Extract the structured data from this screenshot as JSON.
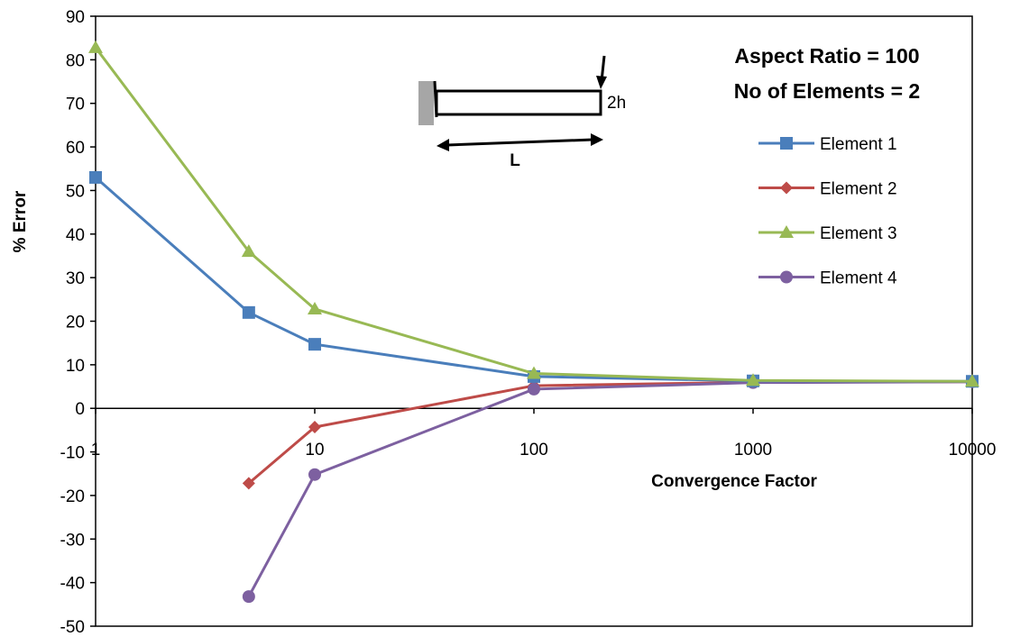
{
  "chart_data": {
    "type": "line",
    "xscale": "log",
    "xlim": [
      1,
      10000
    ],
    "ylim": [
      -50,
      90
    ],
    "yticks": [
      "90",
      "80",
      "70",
      "60",
      "50",
      "40",
      "30",
      "20",
      "10",
      "0",
      "-10",
      "-20",
      "-30",
      "-40",
      "-50"
    ],
    "xticks": [
      "1",
      "10",
      "100",
      "1000",
      "10000"
    ],
    "xlabel": "Convergence Factor",
    "ylabel": "% Error",
    "annotations": [
      "Aspect Ratio = 100",
      "No of Elements = 2"
    ],
    "diagram_labels": {
      "height": "2h",
      "length": "L"
    },
    "legend_position": "right",
    "grid": false,
    "series": [
      {
        "name": "Element 1",
        "color": "#4a7ebb",
        "marker": "square",
        "x": [
          1,
          5,
          10,
          100,
          1000,
          10000
        ],
        "y": [
          53,
          22,
          14.7,
          7.3,
          6.3,
          6.2
        ]
      },
      {
        "name": "Element 2",
        "color": "#be4b48",
        "marker": "diamond",
        "x": [
          5,
          10,
          100,
          1000,
          10000
        ],
        "y": [
          -17.2,
          -4.3,
          5.2,
          6.0,
          6.1
        ]
      },
      {
        "name": "Element 3",
        "color": "#98b954",
        "marker": "triangle",
        "x": [
          1,
          5,
          10,
          100,
          1000,
          10000
        ],
        "y": [
          82.8,
          36,
          22.8,
          8.0,
          6.4,
          6.2
        ]
      },
      {
        "name": "Element 4",
        "color": "#7d60a0",
        "marker": "circle",
        "x": [
          5,
          10,
          100,
          1000,
          10000
        ],
        "y": [
          -43.2,
          -15.2,
          4.4,
          5.9,
          6.1
        ]
      }
    ]
  }
}
